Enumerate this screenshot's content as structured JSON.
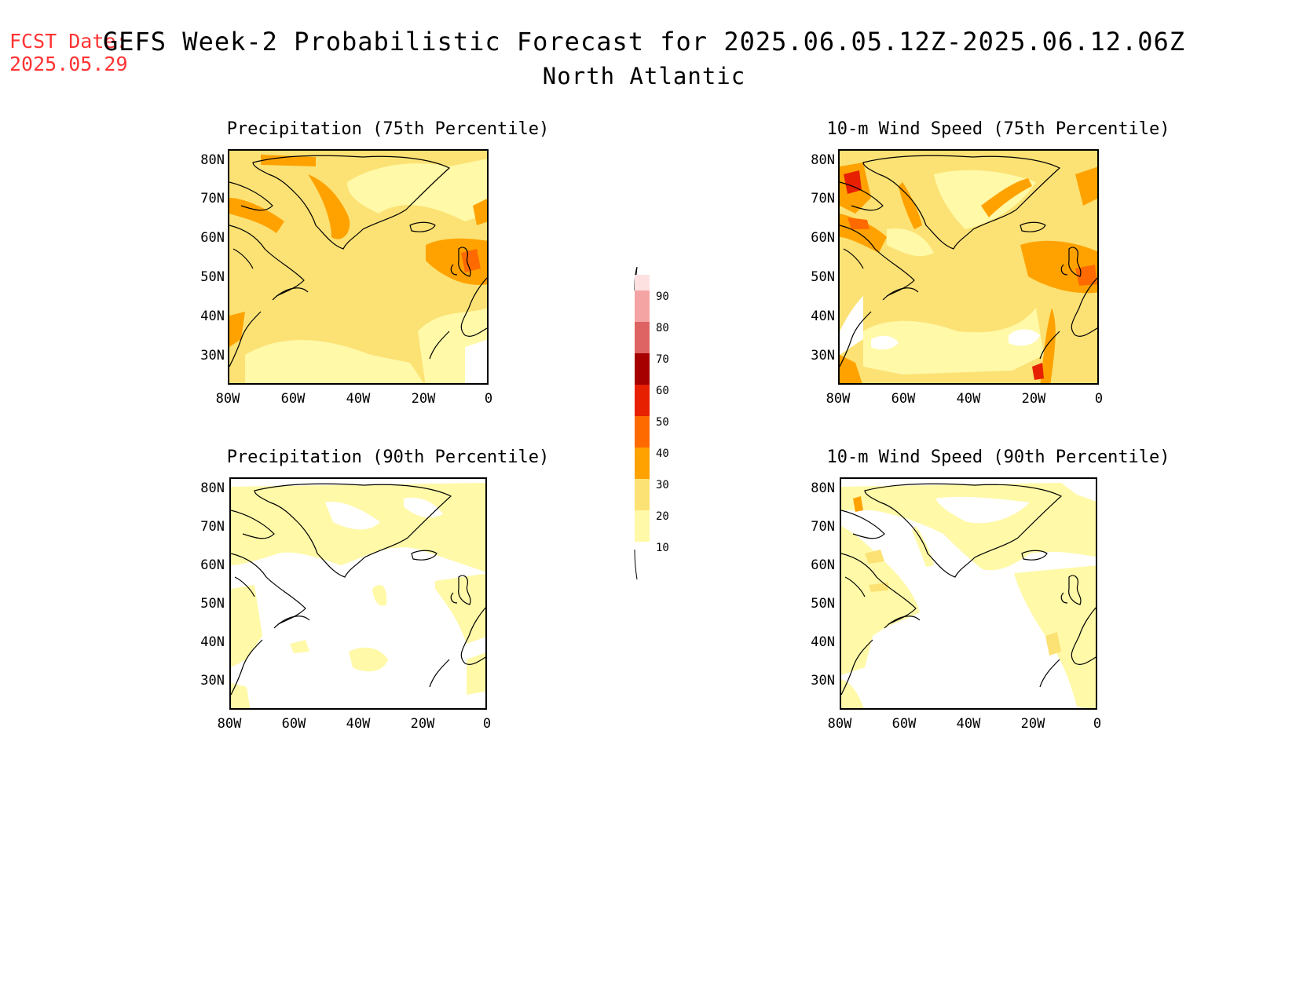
{
  "header": {
    "fcst_label": "FCST Date:",
    "fcst_date": "2025.05.29",
    "title": "GEFS Week-2 Probabilistic Forecast for 2025.06.05.12Z-2025.06.12.06Z",
    "region": "North Atlantic"
  },
  "panels": [
    {
      "title": "Precipitation (75th Percentile)"
    },
    {
      "title": "10-m Wind Speed (75th Percentile)"
    },
    {
      "title": "Precipitation (90th Percentile)"
    },
    {
      "title": "10-m Wind Speed (90th Percentile)"
    }
  ],
  "axes": {
    "lat_labels": [
      "80N",
      "70N",
      "60N",
      "50N",
      "40N",
      "30N"
    ],
    "lat_values": [
      80,
      70,
      60,
      50,
      40,
      30
    ],
    "lon_labels": [
      "80W",
      "60W",
      "40W",
      "20W",
      "0"
    ],
    "lon_values": [
      -80,
      -60,
      -40,
      -20,
      0
    ],
    "lat_range": [
      25,
      85
    ],
    "lon_range": [
      -80,
      0
    ]
  },
  "colorbar": {
    "levels": [
      "10",
      "20",
      "30",
      "40",
      "50",
      "60",
      "70",
      "80",
      "90"
    ],
    "colors": [
      "#fff9a8",
      "#fce274",
      "#ffa200",
      "#ff6a00",
      "#e62000",
      "#a60000",
      "#de6464",
      "#f5a4a4",
      "#fde0e0"
    ]
  }
}
